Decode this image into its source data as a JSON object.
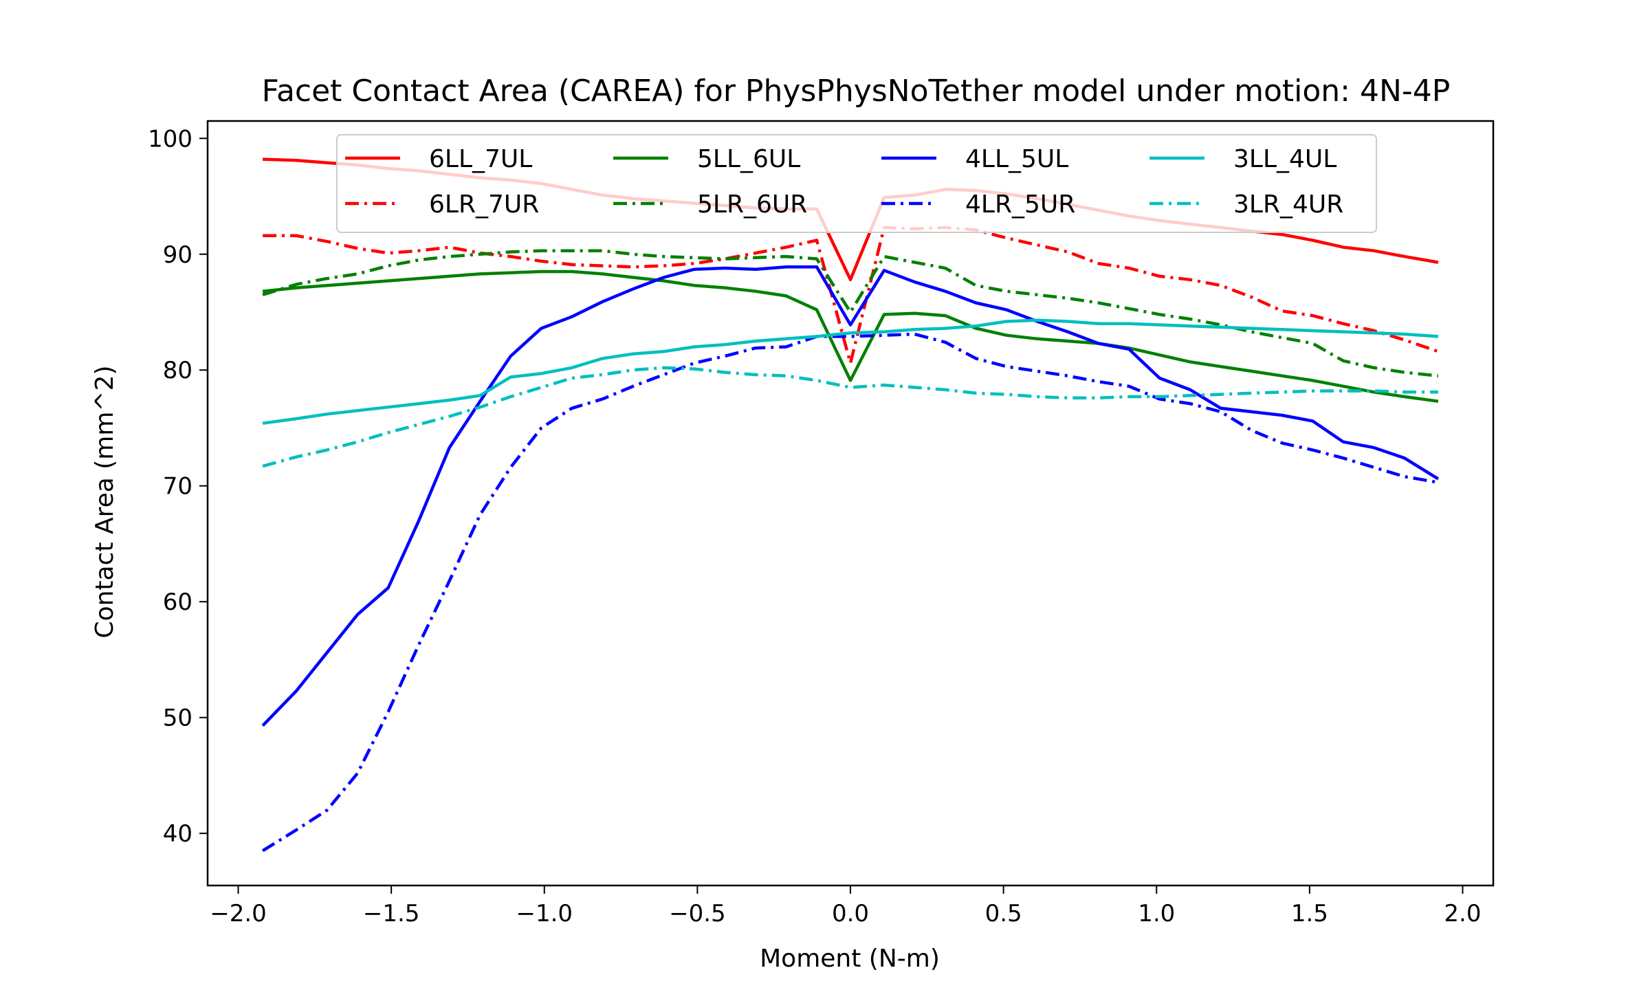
{
  "chart_data": {
    "type": "line",
    "title": "Facet Contact Area (CAREA) for PhysPhysNoTether model under motion: 4N-4P",
    "xlabel": "Moment (N-m)",
    "ylabel": "Contact Area (mm^2)",
    "xlim": [
      -2.1,
      2.1
    ],
    "ylim": [
      35.5,
      101.5
    ],
    "xticks": [
      -2.0,
      -1.5,
      -1.0,
      -0.5,
      0.0,
      0.5,
      1.0,
      1.5,
      2.0
    ],
    "xtick_labels": [
      "−2.0",
      "−1.5",
      "−1.0",
      "−0.5",
      "0.0",
      "0.5",
      "1.0",
      "1.5",
      "2.0"
    ],
    "yticks": [
      40,
      50,
      60,
      70,
      80,
      90,
      100
    ],
    "ytick_labels": [
      "40",
      "50",
      "60",
      "70",
      "80",
      "90",
      "100"
    ],
    "grid": false,
    "legend": {
      "placement": "top-center",
      "columns": 4
    },
    "x": [
      -1.92,
      -1.81,
      -1.71,
      -1.61,
      -1.51,
      -1.41,
      -1.31,
      -1.21,
      -1.11,
      -1.01,
      -0.91,
      -0.81,
      -0.71,
      -0.61,
      -0.51,
      -0.41,
      -0.31,
      -0.21,
      -0.11,
      0.0,
      0.11,
      0.21,
      0.31,
      0.41,
      0.51,
      0.61,
      0.71,
      0.81,
      0.91,
      1.01,
      1.11,
      1.21,
      1.31,
      1.41,
      1.51,
      1.61,
      1.71,
      1.81,
      1.92
    ],
    "series": [
      {
        "name": "6LL_7UL",
        "color": "#ff0000",
        "dash": "solid",
        "values": [
          98.2,
          98.1,
          97.9,
          97.7,
          97.4,
          97.2,
          96.9,
          96.6,
          96.4,
          96.1,
          95.6,
          95.1,
          94.8,
          94.6,
          94.4,
          94.2,
          94.0,
          93.9,
          93.9,
          87.8,
          94.9,
          95.1,
          95.6,
          95.5,
          95.2,
          94.8,
          94.3,
          93.8,
          93.3,
          92.9,
          92.6,
          92.3,
          92.0,
          91.7,
          91.2,
          90.6,
          90.3,
          89.8,
          89.3
        ]
      },
      {
        "name": "6LR_7UR",
        "color": "#ff0000",
        "dash": "dashdot",
        "values": [
          91.6,
          91.6,
          91.1,
          90.5,
          90.1,
          90.3,
          90.6,
          90.1,
          89.8,
          89.4,
          89.1,
          89.0,
          88.9,
          89.0,
          89.2,
          89.6,
          90.1,
          90.6,
          91.2,
          80.6,
          92.3,
          92.2,
          92.3,
          92.1,
          91.4,
          90.8,
          90.2,
          89.2,
          88.8,
          88.1,
          87.8,
          87.3,
          86.3,
          85.1,
          84.7,
          84.0,
          83.4,
          82.6,
          81.6
        ]
      },
      {
        "name": "5LL_6UL",
        "color": "#008000",
        "dash": "solid",
        "values": [
          86.8,
          87.1,
          87.3,
          87.5,
          87.7,
          87.9,
          88.1,
          88.3,
          88.4,
          88.5,
          88.5,
          88.3,
          88.0,
          87.7,
          87.3,
          87.1,
          86.8,
          86.4,
          85.2,
          79.1,
          84.8,
          84.9,
          84.7,
          83.6,
          83.0,
          82.7,
          82.5,
          82.3,
          81.9,
          81.3,
          80.7,
          80.3,
          79.9,
          79.5,
          79.1,
          78.6,
          78.1,
          77.7,
          77.3
        ]
      },
      {
        "name": "5LR_6UR",
        "color": "#008000",
        "dash": "dashdot",
        "values": [
          86.5,
          87.4,
          87.9,
          88.3,
          89.0,
          89.5,
          89.8,
          90.0,
          90.2,
          90.3,
          90.3,
          90.3,
          90.0,
          89.8,
          89.7,
          89.6,
          89.7,
          89.8,
          89.6,
          85.0,
          89.8,
          89.3,
          88.8,
          87.3,
          86.8,
          86.5,
          86.2,
          85.8,
          85.3,
          84.8,
          84.4,
          83.9,
          83.3,
          82.8,
          82.3,
          80.8,
          80.2,
          79.8,
          79.5
        ]
      },
      {
        "name": "4LL_5UL",
        "color": "#0000ff",
        "dash": "solid",
        "values": [
          49.3,
          52.3,
          55.6,
          58.9,
          61.2,
          67.0,
          73.3,
          77.3,
          81.2,
          83.6,
          84.6,
          85.9,
          87.0,
          88.0,
          88.7,
          88.8,
          88.7,
          88.9,
          88.9,
          83.9,
          88.6,
          87.6,
          86.8,
          85.8,
          85.2,
          84.2,
          83.3,
          82.3,
          81.8,
          79.3,
          78.3,
          76.7,
          76.4,
          76.1,
          75.6,
          73.8,
          73.3,
          72.4,
          70.6
        ]
      },
      {
        "name": "4LR_5UR",
        "color": "#0000ff",
        "dash": "dashdot",
        "values": [
          38.5,
          40.3,
          42.0,
          45.2,
          50.5,
          56.3,
          61.8,
          67.5,
          71.6,
          75.0,
          76.7,
          77.5,
          78.6,
          79.6,
          80.6,
          81.2,
          81.9,
          82.0,
          82.9,
          82.9,
          83.0,
          83.1,
          82.4,
          81.0,
          80.3,
          79.9,
          79.5,
          79.0,
          78.6,
          77.5,
          77.1,
          76.4,
          74.8,
          73.7,
          73.1,
          72.4,
          71.6,
          70.8,
          70.3
        ]
      },
      {
        "name": "3LL_4UL",
        "color": "#00bfbf",
        "dash": "solid",
        "values": [
          75.4,
          75.8,
          76.2,
          76.5,
          76.8,
          77.1,
          77.4,
          77.8,
          79.4,
          79.7,
          80.2,
          81.0,
          81.4,
          81.6,
          82.0,
          82.2,
          82.5,
          82.7,
          82.9,
          83.2,
          83.3,
          83.5,
          83.6,
          83.8,
          84.2,
          84.3,
          84.2,
          84.0,
          84.0,
          83.9,
          83.8,
          83.7,
          83.6,
          83.5,
          83.4,
          83.3,
          83.2,
          83.1,
          82.9
        ]
      },
      {
        "name": "3LR_4UR",
        "color": "#00bfbf",
        "dash": "dashdot",
        "values": [
          71.7,
          72.5,
          73.1,
          73.8,
          74.6,
          75.3,
          76.0,
          76.8,
          77.7,
          78.5,
          79.3,
          79.6,
          80.0,
          80.2,
          80.1,
          79.8,
          79.6,
          79.5,
          79.1,
          78.5,
          78.7,
          78.5,
          78.3,
          78.0,
          77.9,
          77.7,
          77.6,
          77.6,
          77.7,
          77.7,
          77.8,
          77.9,
          78.0,
          78.1,
          78.2,
          78.2,
          78.2,
          78.1,
          78.1
        ]
      }
    ]
  }
}
